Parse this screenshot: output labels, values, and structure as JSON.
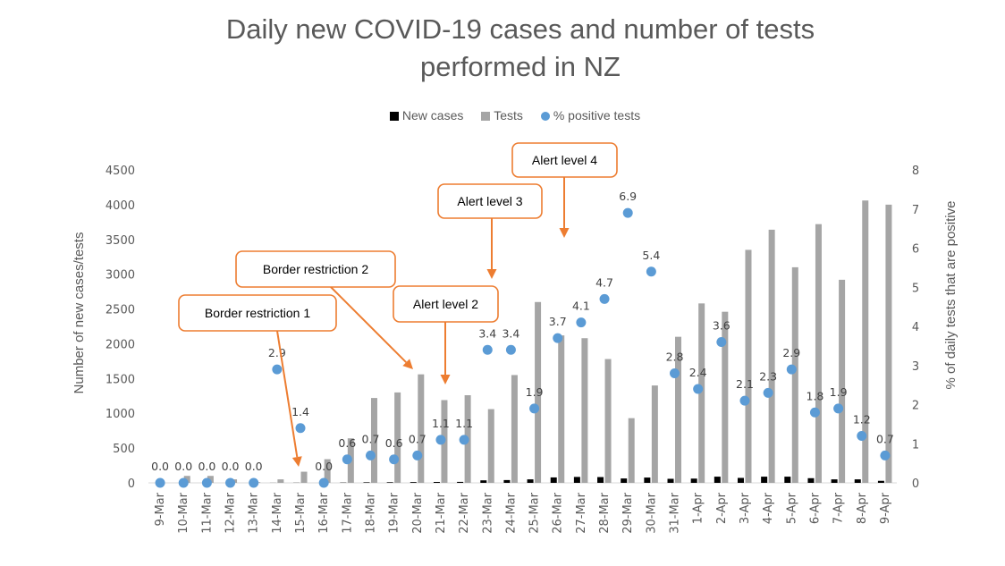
{
  "chart_data": {
    "type": "bar",
    "title": "Daily new COVID-19 cases and number of tests performed in NZ",
    "title_lines": [
      "Daily new COVID-19 cases and number of tests",
      "performed in NZ"
    ],
    "legend": [
      {
        "name": "New cases",
        "color": "#000000",
        "marker": "square"
      },
      {
        "name": "Tests",
        "color": "#a5a5a5",
        "marker": "square"
      },
      {
        "name": "% positive tests",
        "color": "#5b9bd5",
        "marker": "circle"
      }
    ],
    "legend_position": "top",
    "ylabel": "Number of new cases/tests",
    "y2label": "% of daily tests that are positive",
    "ylim": [
      0,
      4500
    ],
    "y2lim": [
      0,
      8
    ],
    "yticks": [
      0,
      500,
      1000,
      1500,
      2000,
      2500,
      3000,
      3500,
      4000,
      4500
    ],
    "y2ticks": [
      0,
      1,
      2,
      3,
      4,
      5,
      6,
      7,
      8
    ],
    "grid": false,
    "categories": [
      "9-Mar",
      "10-Mar",
      "11-Mar",
      "12-Mar",
      "13-Mar",
      "14-Mar",
      "15-Mar",
      "16-Mar",
      "17-Mar",
      "18-Mar",
      "19-Mar",
      "20-Mar",
      "21-Mar",
      "22-Mar",
      "23-Mar",
      "24-Mar",
      "25-Mar",
      "26-Mar",
      "27-Mar",
      "28-Mar",
      "29-Mar",
      "30-Mar",
      "31-Mar",
      "1-Apr",
      "2-Apr",
      "3-Apr",
      "4-Apr",
      "5-Apr",
      "6-Apr",
      "7-Apr",
      "8-Apr",
      "9-Apr"
    ],
    "series": [
      {
        "name": "New cases",
        "axis": "left",
        "type": "bar",
        "color": "#000000",
        "values": [
          0,
          0,
          0,
          0,
          0,
          1,
          2,
          0,
          4,
          8,
          9,
          11,
          13,
          14,
          36,
          40,
          50,
          78,
          85,
          83,
          63,
          76,
          58,
          61,
          89,
          71,
          89,
          89,
          67,
          50,
          50,
          29
        ]
      },
      {
        "name": "Tests",
        "axis": "left",
        "type": "bar",
        "color": "#a5a5a5",
        "values": [
          0,
          100,
          100,
          50,
          10,
          50,
          160,
          340,
          640,
          1220,
          1300,
          1560,
          1190,
          1260,
          1060,
          1550,
          2600,
          2120,
          2080,
          1780,
          930,
          1400,
          2100,
          2580,
          2460,
          3350,
          3640,
          3100,
          3720,
          2920,
          4060,
          4000
        ]
      },
      {
        "name": "% positive tests",
        "axis": "right",
        "type": "scatter",
        "color": "#5b9bd5",
        "values": [
          0.0,
          0.0,
          0.0,
          0.0,
          0.0,
          2.9,
          1.4,
          0.0,
          0.6,
          0.7,
          0.6,
          0.7,
          1.1,
          1.1,
          3.4,
          3.4,
          1.9,
          3.7,
          4.1,
          4.7,
          6.9,
          5.4,
          2.8,
          2.4,
          3.6,
          2.1,
          2.3,
          2.9,
          1.8,
          1.9,
          1.2,
          0.7
        ],
        "labels": [
          "0.0",
          "0.0",
          "0.0",
          "0.0",
          "0.0",
          "2.9",
          "1.4",
          "0.0",
          "0.6",
          "0.7",
          "0.6",
          "0.7",
          "1.1",
          "1.1",
          "3.4",
          "3.4",
          "1.9",
          "3.7",
          "4.1",
          "4.7",
          "6.9",
          "5.4",
          "2.8",
          "2.4",
          "3.6",
          "2.1",
          "2.3",
          "2.9",
          "1.8",
          "1.9",
          "1.2",
          "0.7"
        ]
      }
    ],
    "annotations": [
      {
        "text": "Border restriction 1",
        "points_to": "15-Mar"
      },
      {
        "text": "Border restriction 2",
        "points_to": "20-Mar"
      },
      {
        "text": "Alert level 2",
        "points_to": "21-Mar"
      },
      {
        "text": "Alert level 3",
        "points_to": "23-Mar"
      },
      {
        "text": "Alert level 4",
        "points_to": "26-Mar"
      }
    ],
    "annotation_color": "#ed7d31"
  }
}
